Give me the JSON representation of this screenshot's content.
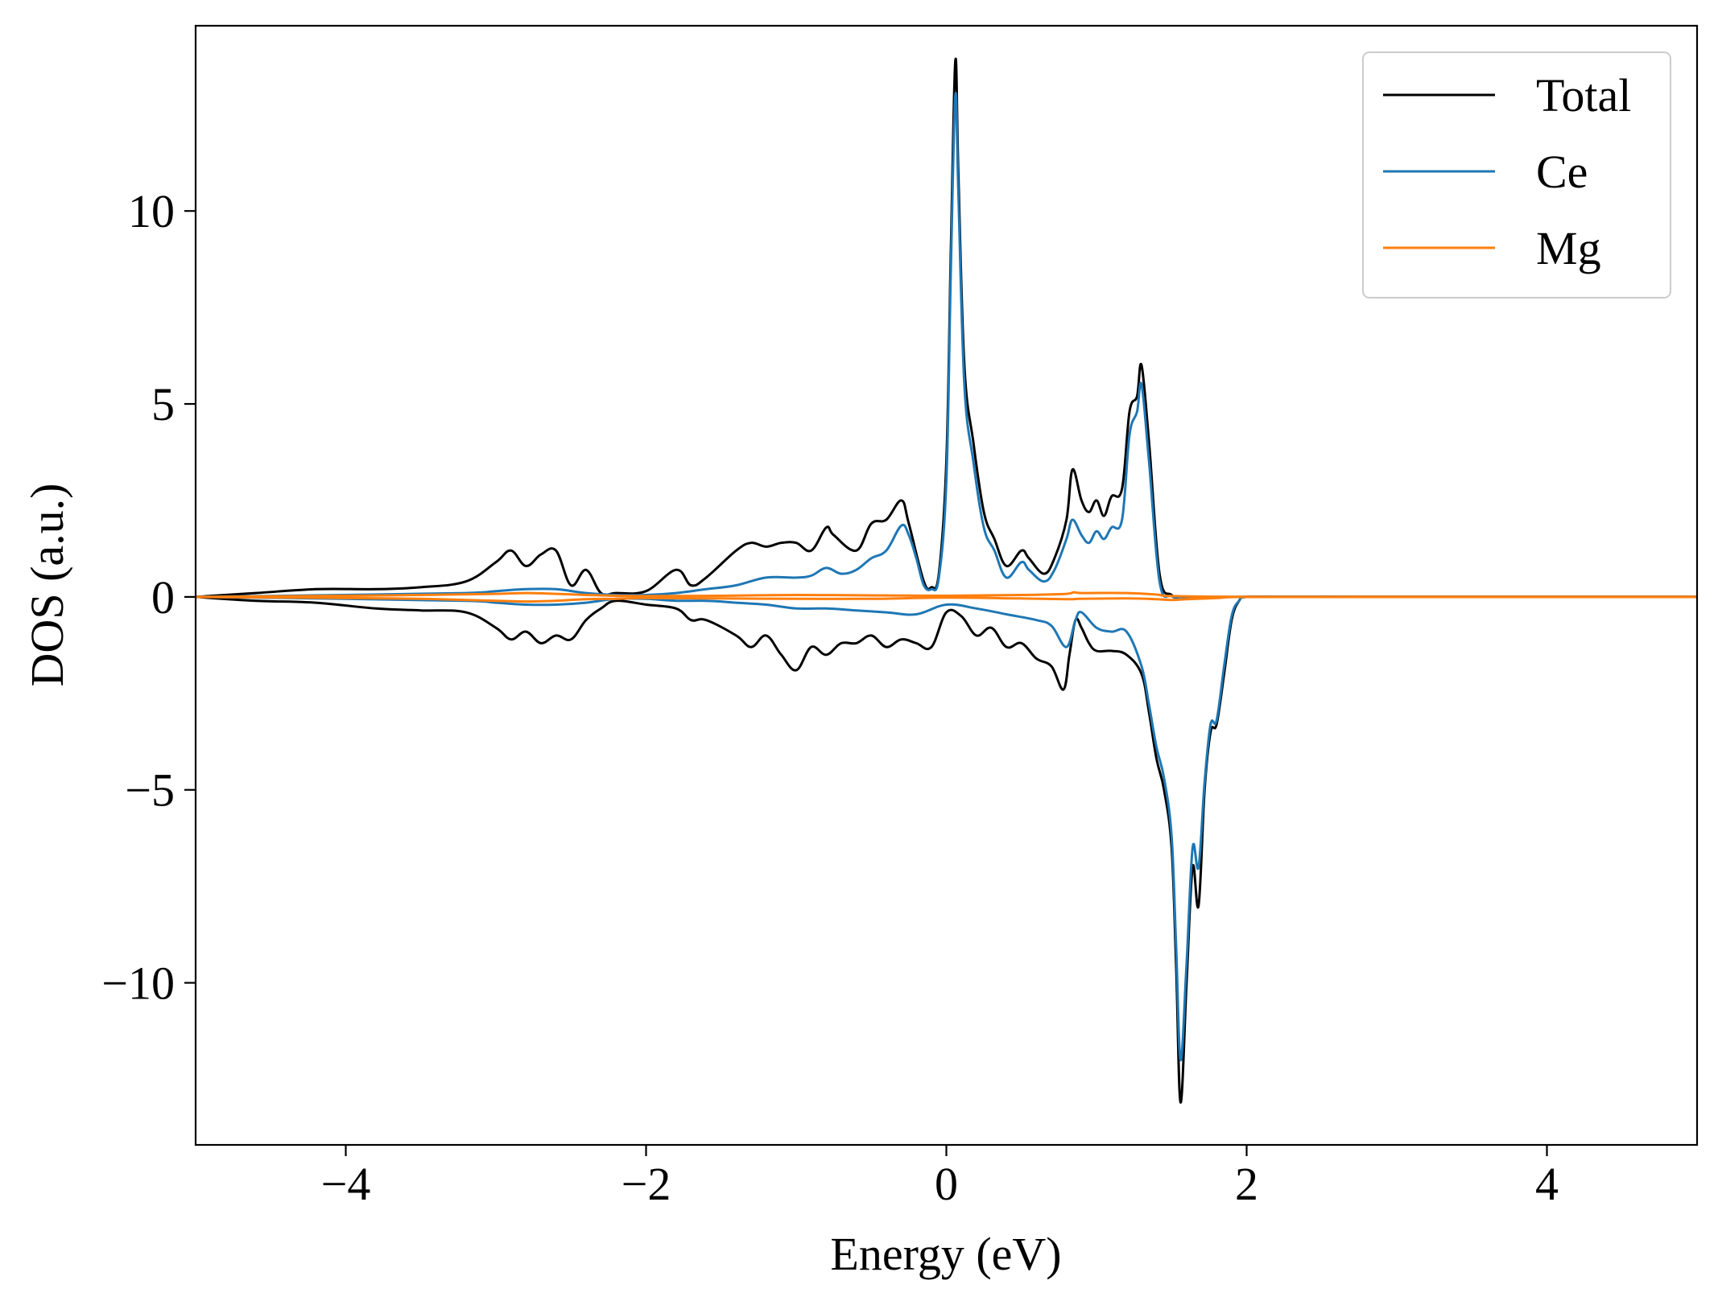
{
  "chart_data": {
    "type": "line",
    "title": "",
    "xlabel": "Energy (eV)",
    "ylabel": "DOS (a.u.)",
    "xlim": [
      -5,
      5
    ],
    "ylim": [
      -14.2,
      14.8
    ],
    "xticks": [
      -4,
      -2,
      0,
      2,
      4
    ],
    "xtick_labels": [
      "−4",
      "−2",
      "0",
      "2",
      "4"
    ],
    "yticks": [
      -10,
      -5,
      0,
      5,
      10
    ],
    "ytick_labels": [
      "−10",
      "−5",
      "0",
      "5",
      "10"
    ],
    "grid": false,
    "legend_position": "top-right",
    "legend": [
      "Total",
      "Ce",
      "Mg"
    ],
    "colors": {
      "Total": "#000000",
      "Ce": "#1f77b4",
      "Mg": "#ff7f0e"
    },
    "series": [
      {
        "name": "Total",
        "color": "#000000",
        "spin_up": {
          "x": [
            -5.0,
            -4.6,
            -4.2,
            -3.8,
            -3.5,
            -3.2,
            -3.0,
            -2.9,
            -2.8,
            -2.7,
            -2.6,
            -2.5,
            -2.4,
            -2.3,
            -2.2,
            -2.0,
            -1.8,
            -1.7,
            -1.6,
            -1.4,
            -1.3,
            -1.2,
            -1.1,
            -1.0,
            -0.9,
            -0.8,
            -0.75,
            -0.6,
            -0.5,
            -0.4,
            -0.3,
            -0.25,
            -0.15,
            -0.1,
            -0.05,
            0.0,
            0.03,
            0.06,
            0.08,
            0.12,
            0.18,
            0.25,
            0.32,
            0.4,
            0.5,
            0.55,
            0.65,
            0.72,
            0.8,
            0.84,
            0.9,
            0.95,
            1.0,
            1.05,
            1.1,
            1.17,
            1.22,
            1.27,
            1.3,
            1.35,
            1.42,
            1.5,
            1.6,
            2.0,
            3.0,
            4.0,
            5.0
          ],
          "y": [
            0.0,
            0.1,
            0.2,
            0.2,
            0.25,
            0.4,
            0.9,
            1.2,
            0.8,
            1.1,
            1.2,
            0.3,
            0.7,
            0.1,
            0.1,
            0.15,
            0.7,
            0.3,
            0.5,
            1.2,
            1.4,
            1.3,
            1.4,
            1.4,
            1.2,
            1.8,
            1.6,
            1.2,
            1.9,
            2.0,
            2.5,
            1.9,
            0.4,
            0.25,
            0.6,
            3.5,
            9.0,
            13.9,
            11.0,
            6.0,
            4.0,
            2.2,
            1.5,
            0.8,
            1.2,
            1.0,
            0.6,
            1.0,
            2.0,
            3.3,
            2.5,
            2.2,
            2.5,
            2.1,
            2.6,
            2.8,
            4.8,
            5.2,
            6.0,
            4.0,
            0.6,
            0.05,
            0.0,
            0.0,
            0.0,
            0.0,
            0.0
          ]
        },
        "spin_down": {
          "x": [
            -5.0,
            -4.6,
            -4.2,
            -3.8,
            -3.5,
            -3.2,
            -3.0,
            -2.9,
            -2.8,
            -2.7,
            -2.6,
            -2.5,
            -2.4,
            -2.3,
            -2.2,
            -2.0,
            -1.8,
            -1.7,
            -1.6,
            -1.4,
            -1.3,
            -1.2,
            -1.1,
            -1.0,
            -0.9,
            -0.8,
            -0.7,
            -0.6,
            -0.5,
            -0.4,
            -0.3,
            -0.2,
            -0.1,
            0.0,
            0.1,
            0.2,
            0.3,
            0.4,
            0.5,
            0.6,
            0.7,
            0.78,
            0.82,
            0.86,
            0.9,
            0.95,
            1.0,
            1.1,
            1.2,
            1.3,
            1.35,
            1.4,
            1.45,
            1.5,
            1.53,
            1.56,
            1.6,
            1.64,
            1.68,
            1.72,
            1.76,
            1.8,
            1.85,
            1.9,
            1.95,
            2.0,
            3.0,
            4.0,
            5.0
          ],
          "y": [
            0.0,
            -0.1,
            -0.15,
            -0.3,
            -0.35,
            -0.4,
            -0.8,
            -1.1,
            -0.9,
            -1.2,
            -1.0,
            -1.1,
            -0.6,
            -0.3,
            -0.1,
            -0.2,
            -0.3,
            -0.6,
            -0.6,
            -1.0,
            -1.3,
            -1.0,
            -1.5,
            -1.9,
            -1.3,
            -1.5,
            -1.2,
            -1.2,
            -1.0,
            -1.3,
            -1.1,
            -1.2,
            -1.3,
            -0.4,
            -0.5,
            -1.0,
            -0.8,
            -1.3,
            -1.2,
            -1.6,
            -1.8,
            -2.4,
            -1.5,
            -0.6,
            -0.8,
            -1.2,
            -1.4,
            -1.4,
            -1.5,
            -2.0,
            -3.0,
            -4.2,
            -5.0,
            -6.5,
            -9.5,
            -13.1,
            -10.0,
            -7.0,
            -8.0,
            -5.0,
            -3.5,
            -3.3,
            -2.0,
            -0.6,
            -0.1,
            0.0,
            0.0,
            0.0,
            0.0
          ]
        }
      },
      {
        "name": "Ce",
        "color": "#1f77b4",
        "spin_up": {
          "x": [
            -5.0,
            -4.0,
            -3.2,
            -3.0,
            -2.8,
            -2.6,
            -2.4,
            -2.2,
            -2.0,
            -1.8,
            -1.6,
            -1.4,
            -1.2,
            -1.0,
            -0.9,
            -0.8,
            -0.7,
            -0.6,
            -0.5,
            -0.4,
            -0.3,
            -0.25,
            -0.2,
            -0.15,
            -0.1,
            -0.05,
            0.0,
            0.03,
            0.06,
            0.08,
            0.12,
            0.18,
            0.25,
            0.32,
            0.4,
            0.5,
            0.55,
            0.65,
            0.72,
            0.8,
            0.84,
            0.9,
            0.95,
            1.0,
            1.05,
            1.1,
            1.17,
            1.22,
            1.27,
            1.3,
            1.35,
            1.42,
            1.5,
            1.6,
            2.0,
            3.0,
            4.0,
            5.0
          ],
          "y": [
            0.0,
            0.05,
            0.1,
            0.15,
            0.2,
            0.2,
            0.1,
            0.05,
            0.05,
            0.1,
            0.2,
            0.3,
            0.5,
            0.5,
            0.55,
            0.75,
            0.6,
            0.7,
            1.0,
            1.2,
            1.85,
            1.6,
            1.0,
            0.3,
            0.2,
            0.5,
            3.0,
            8.5,
            13.0,
            10.5,
            5.5,
            3.5,
            1.8,
            1.2,
            0.5,
            0.9,
            0.7,
            0.4,
            0.7,
            1.5,
            2.0,
            1.6,
            1.4,
            1.7,
            1.5,
            1.8,
            2.0,
            4.2,
            4.8,
            5.5,
            3.5,
            0.4,
            0.02,
            0.0,
            0.0,
            0.0,
            0.0,
            0.0
          ]
        },
        "spin_down": {
          "x": [
            -5.0,
            -4.0,
            -3.2,
            -3.0,
            -2.8,
            -2.6,
            -2.4,
            -2.2,
            -2.0,
            -1.8,
            -1.6,
            -1.4,
            -1.2,
            -1.0,
            -0.8,
            -0.6,
            -0.4,
            -0.2,
            0.0,
            0.2,
            0.4,
            0.6,
            0.7,
            0.8,
            0.86,
            0.9,
            1.0,
            1.1,
            1.2,
            1.3,
            1.35,
            1.4,
            1.45,
            1.5,
            1.53,
            1.56,
            1.6,
            1.64,
            1.68,
            1.72,
            1.76,
            1.8,
            1.85,
            1.9,
            1.95,
            2.0,
            3.0,
            4.0,
            5.0
          ],
          "y": [
            0.0,
            -0.05,
            -0.1,
            -0.15,
            -0.2,
            -0.2,
            -0.15,
            -0.05,
            -0.05,
            -0.1,
            -0.1,
            -0.15,
            -0.2,
            -0.3,
            -0.3,
            -0.35,
            -0.4,
            -0.45,
            -0.2,
            -0.3,
            -0.45,
            -0.6,
            -0.75,
            -1.3,
            -0.6,
            -0.4,
            -0.8,
            -0.9,
            -0.9,
            -1.8,
            -2.8,
            -3.9,
            -4.7,
            -6.2,
            -9.0,
            -12.0,
            -9.5,
            -6.5,
            -7.0,
            -4.8,
            -3.3,
            -3.2,
            -1.8,
            -0.5,
            -0.1,
            0.0,
            0.0,
            0.0,
            0.0
          ]
        }
      },
      {
        "name": "Mg",
        "color": "#ff7f0e",
        "spin_up": {
          "x": [
            -5.0,
            -4.0,
            -3.5,
            -3.0,
            -2.8,
            -2.6,
            -2.4,
            -2.2,
            -2.0,
            -1.5,
            -1.0,
            -0.5,
            0.0,
            0.5,
            0.8,
            0.85,
            0.9,
            1.2,
            1.4,
            1.5,
            2.0,
            3.0,
            4.0,
            5.0
          ],
          "y": [
            0.0,
            0.03,
            0.05,
            0.08,
            0.1,
            0.08,
            0.05,
            0.03,
            0.02,
            0.03,
            0.05,
            0.04,
            0.03,
            0.05,
            0.08,
            0.12,
            0.1,
            0.1,
            0.06,
            0.02,
            0.0,
            0.0,
            0.0,
            0.0
          ]
        },
        "spin_down": {
          "x": [
            -5.0,
            -4.0,
            -3.5,
            -3.0,
            -2.8,
            -2.6,
            -2.4,
            -2.2,
            -2.0,
            -1.5,
            -1.0,
            -0.5,
            0.0,
            0.5,
            0.8,
            0.9,
            1.2,
            1.4,
            1.5,
            1.6,
            1.8,
            2.0,
            3.0,
            4.0,
            5.0
          ],
          "y": [
            0.0,
            -0.03,
            -0.05,
            -0.1,
            -0.12,
            -0.1,
            -0.06,
            -0.05,
            -0.03,
            -0.04,
            -0.05,
            -0.05,
            -0.02,
            -0.04,
            -0.06,
            -0.05,
            -0.04,
            -0.06,
            -0.08,
            -0.06,
            -0.03,
            0.0,
            0.0,
            0.0,
            0.0
          ]
        }
      }
    ]
  }
}
